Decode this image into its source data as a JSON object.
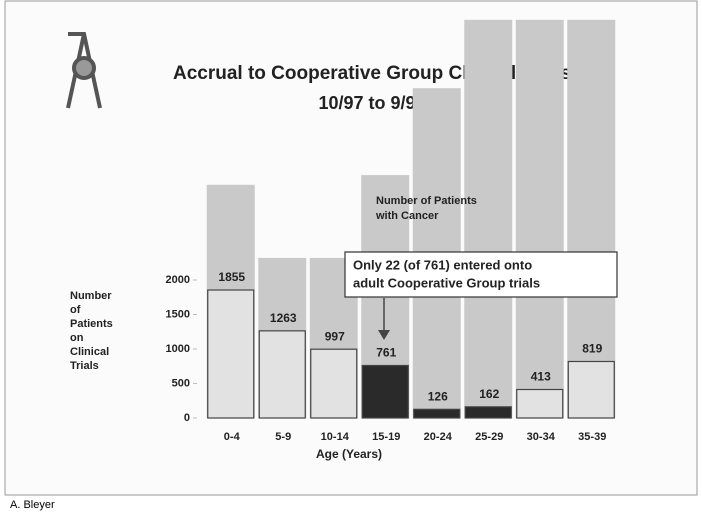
{
  "chart_data": {
    "type": "bar",
    "title": "Accrual to Cooperative Group Clinical Trials",
    "subtitle": "10/97 to 9/98",
    "y_label": [
      "Number",
      "of",
      "Patients",
      "on",
      "Clinical",
      "Trials"
    ],
    "x_label": "Age (Years)",
    "categories": [
      "0-4",
      "5-9",
      "10-14",
      "15-19",
      "20-24",
      "25-29",
      "30-34",
      "35-39"
    ],
    "series": [
      {
        "color": "#c9c9c9",
        "values": [
          3380,
          2320,
          2320,
          3520,
          4780,
          5770,
          5770,
          5770
        ]
      },
      {
        "colors": [
          "#e2e2e2",
          "#e2e2e2",
          "#e2e2e2",
          "#2a2a2a",
          "#2a2a2a",
          "#2a2a2a",
          "#e2e2e2",
          "#e2e2e2"
        ],
        "values": [
          1855,
          1263,
          997,
          761,
          126,
          162,
          413,
          819
        ]
      }
    ],
    "ylim": [
      0,
      2000
    ],
    "yticks": [
      0,
      500,
      1000,
      1500,
      2000
    ],
    "annotations": [
      [
        "Number of Patients",
        "with Cancer"
      ],
      [
        "Only 22 (of 761) entered onto",
        "adult Cooperative Group trials"
      ]
    ],
    "credit": "A. Bleyer"
  }
}
